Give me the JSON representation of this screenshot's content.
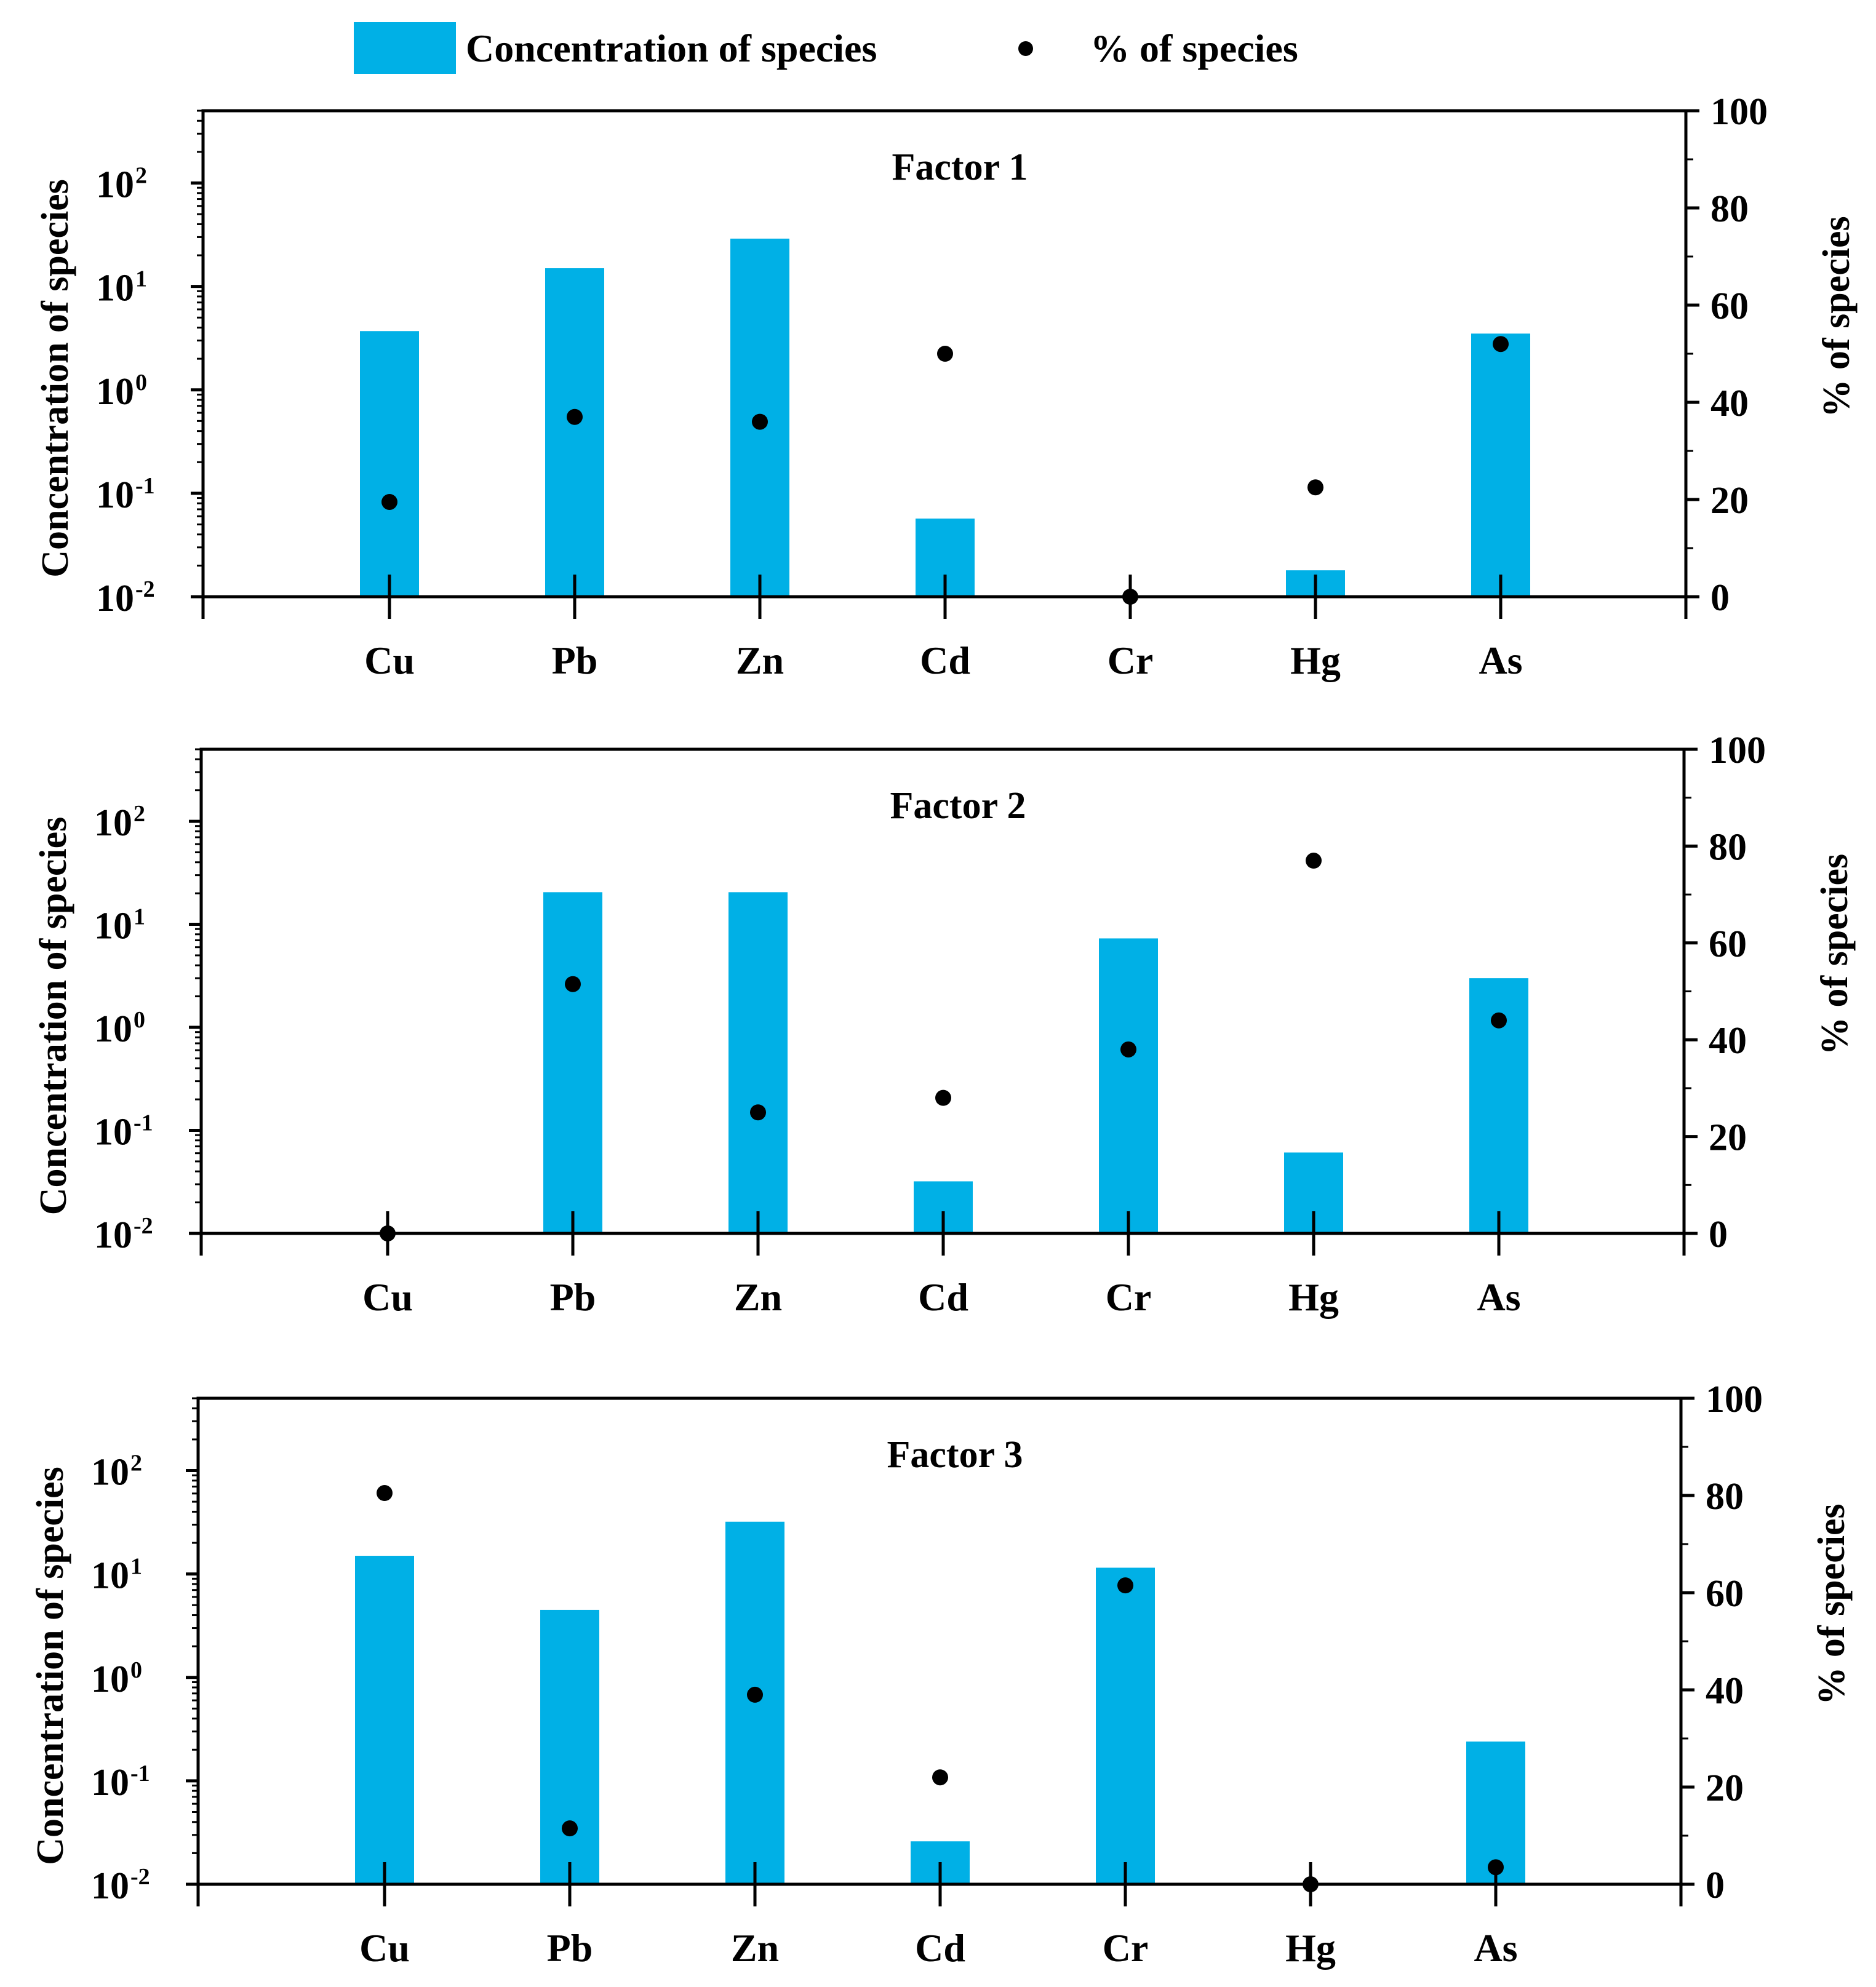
{
  "legend": {
    "bar_label": "Concentration of species",
    "dot_label": "% of species",
    "bar_color": "#00b0e6",
    "dot_color": "#000000"
  },
  "chart_data": [
    {
      "type": "bar",
      "title": "Factor 1",
      "categories": [
        "Cu",
        "Pb",
        "Zn",
        "Cd",
        "Cr",
        "Hg",
        "As"
      ],
      "ylabel": "Concentration of species",
      "y2label": "% of species",
      "yscale": "log",
      "ylim": [
        0.01,
        500
      ],
      "y2lim": [
        0,
        100
      ],
      "yticks": [
        "10",
        "10",
        "10",
        "10",
        "10"
      ],
      "yticks_exp": [
        "-2",
        "-1",
        "0",
        "1",
        "2"
      ],
      "y2ticks": [
        "0",
        "20",
        "40",
        "60",
        "80",
        "100"
      ],
      "series": [
        {
          "name": "Concentration of species",
          "values": [
            3.7,
            15,
            29,
            0.057,
            0.01,
            0.018,
            3.5
          ]
        },
        {
          "name": "% of species",
          "values": [
            19.5,
            37,
            36,
            50,
            0,
            22.5,
            52
          ]
        }
      ]
    },
    {
      "type": "bar",
      "title": "Factor 2",
      "categories": [
        "Cu",
        "Pb",
        "Zn",
        "Cd",
        "Cr",
        "Hg",
        "As"
      ],
      "ylabel": "Concentration of species",
      "y2label": "% of species",
      "yscale": "log",
      "ylim": [
        0.01,
        500
      ],
      "y2lim": [
        0,
        100
      ],
      "yticks": [
        "10",
        "10",
        "10",
        "10",
        "10"
      ],
      "yticks_exp": [
        "-2",
        "-1",
        "0",
        "1",
        "2"
      ],
      "y2ticks": [
        "0",
        "20",
        "40",
        "60",
        "80",
        "100"
      ],
      "series": [
        {
          "name": "Concentration of species",
          "values": [
            0.01,
            20.5,
            20.5,
            0.032,
            7.3,
            0.061,
            3.0
          ]
        },
        {
          "name": "% of species",
          "values": [
            0,
            51.5,
            25,
            28,
            38,
            77,
            44
          ]
        }
      ]
    },
    {
      "type": "bar",
      "title": "Factor 3",
      "categories": [
        "Cu",
        "Pb",
        "Zn",
        "Cd",
        "Cr",
        "Hg",
        "As"
      ],
      "ylabel": "Concentration of species",
      "y2label": "% of species",
      "yscale": "log",
      "ylim": [
        0.01,
        500
      ],
      "y2lim": [
        0,
        100
      ],
      "yticks": [
        "10",
        "10",
        "10",
        "10",
        "10"
      ],
      "yticks_exp": [
        "-2",
        "-1",
        "0",
        "1",
        "2"
      ],
      "y2ticks": [
        "0",
        "20",
        "40",
        "60",
        "80",
        "100"
      ],
      "series": [
        {
          "name": "Concentration of species",
          "values": [
            15,
            4.5,
            32,
            0.026,
            11.5,
            0.01,
            0.24
          ]
        },
        {
          "name": "% of species",
          "values": [
            80.5,
            11.5,
            39,
            22,
            61.5,
            0,
            3.5
          ]
        }
      ]
    }
  ]
}
